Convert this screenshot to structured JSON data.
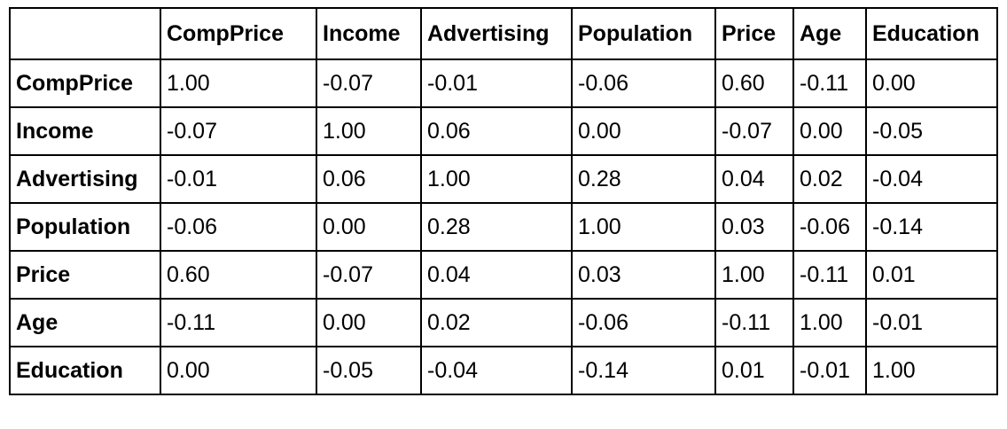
{
  "chart_data": {
    "type": "table",
    "corner_label": "",
    "columns": [
      "CompPrice",
      "Income",
      "Advertising",
      "Population",
      "Price",
      "Age",
      "Education"
    ],
    "rows": [
      {
        "label": "CompPrice",
        "values": [
          "1.00",
          "-0.07",
          "-0.01",
          "-0.06",
          "0.60",
          "-0.11",
          "0.00"
        ]
      },
      {
        "label": "Income",
        "values": [
          "-0.07",
          "1.00",
          "0.06",
          "0.00",
          "-0.07",
          "0.00",
          "-0.05"
        ]
      },
      {
        "label": "Advertising",
        "values": [
          "-0.01",
          "0.06",
          "1.00",
          "0.28",
          "0.04",
          "0.02",
          "-0.04"
        ]
      },
      {
        "label": "Population",
        "values": [
          "-0.06",
          "0.00",
          "0.28",
          "1.00",
          "0.03",
          "-0.06",
          "-0.14"
        ]
      },
      {
        "label": "Price",
        "values": [
          "0.60",
          "-0.07",
          "0.04",
          "0.03",
          "1.00",
          "-0.11",
          "0.01"
        ]
      },
      {
        "label": "Age",
        "values": [
          "-0.11",
          "0.00",
          "0.02",
          "-0.06",
          "-0.11",
          "1.00",
          "-0.01"
        ]
      },
      {
        "label": "Education",
        "values": [
          "0.00",
          "-0.05",
          "-0.04",
          "-0.14",
          "0.01",
          "-0.01",
          "1.00"
        ]
      }
    ]
  }
}
